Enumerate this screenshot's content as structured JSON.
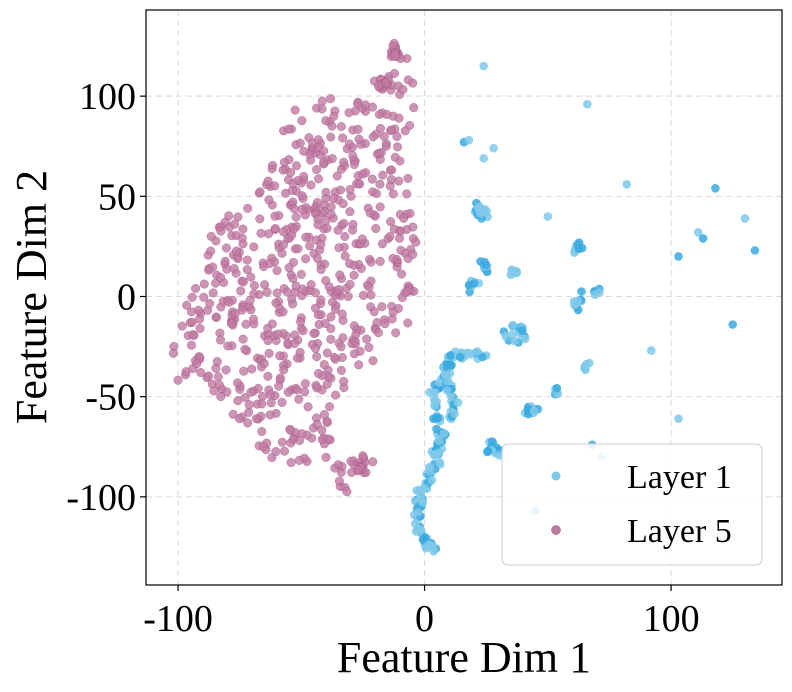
{
  "chart_data": {
    "type": "scatter",
    "xlabel": "Feature Dim 1",
    "ylabel": "Feature Dim 2",
    "xlim": [
      -113,
      145
    ],
    "ylim": [
      -144,
      143
    ],
    "xticks": [
      -100,
      0,
      100
    ],
    "yticks": [
      -100,
      -50,
      0,
      50,
      100
    ],
    "xtick_labels": [
      "-100",
      "0",
      "100"
    ],
    "ytick_labels": [
      "-100",
      "-50",
      "0",
      "50",
      "100"
    ],
    "grid": true,
    "legend_position": "lower-right",
    "series": [
      {
        "name": "Layer 1",
        "color": "#7fc9ea",
        "dark_color": "#3aa9e0",
        "clusters": [
          {
            "type": "path",
            "pts": [
              [
                12,
                -25
              ],
              [
                8,
                -40
              ],
              [
                3,
                -50
              ],
              [
                5,
                -60
              ],
              [
                7,
                -70
              ],
              [
                5,
                -80
              ],
              [
                2,
                -90
              ],
              [
                -2,
                -100
              ],
              [
                -3,
                -110
              ],
              [
                -1,
                -120
              ],
              [
                5,
                -128
              ]
            ],
            "n": 140,
            "spread": 3
          },
          {
            "type": "path",
            "pts": [
              [
                10,
                -30
              ],
              [
                20,
                -28
              ],
              [
                25,
                -30
              ]
            ],
            "n": 20,
            "spread": 3
          },
          {
            "type": "path",
            "pts": [
              [
                10,
                -45
              ],
              [
                12,
                -60
              ]
            ],
            "n": 20,
            "spread": 3
          },
          {
            "type": "blob",
            "c": [
              23,
              43
            ],
            "r": [
              5,
              5
            ],
            "n": 18
          },
          {
            "type": "blob",
            "c": [
              25,
              15
            ],
            "r": [
              4,
              5
            ],
            "n": 12
          },
          {
            "type": "blob",
            "c": [
              20,
              5
            ],
            "r": [
              4,
              4
            ],
            "n": 8
          },
          {
            "type": "blob",
            "c": [
              36,
              12
            ],
            "r": [
              3,
              3
            ],
            "n": 8
          },
          {
            "type": "blob",
            "c": [
              37,
              -18
            ],
            "r": [
              7,
              7
            ],
            "n": 18
          },
          {
            "type": "blob",
            "c": [
              43,
              -57
            ],
            "r": [
              5,
              4
            ],
            "n": 15
          },
          {
            "type": "blob",
            "c": [
              28,
              -76
            ],
            "r": [
              5,
              7
            ],
            "n": 14
          },
          {
            "type": "blob",
            "c": [
              62,
              -3
            ],
            "r": [
              4,
              6
            ],
            "n": 10
          },
          {
            "type": "blob",
            "c": [
              62,
              25
            ],
            "r": [
              4,
              4
            ],
            "n": 8
          },
          {
            "type": "blob",
            "c": [
              70,
              3
            ],
            "r": [
              3,
              3
            ],
            "n": 5
          },
          {
            "type": "blob",
            "c": [
              66,
              -35
            ],
            "r": [
              3,
              5
            ],
            "n": 5
          },
          {
            "type": "blob",
            "c": [
              53,
              -47
            ],
            "r": [
              3,
              3
            ],
            "n": 4
          },
          {
            "type": "points",
            "pts": [
              [
                24,
                115
              ],
              [
                66,
                96
              ],
              [
                16,
                77
              ],
              [
                28,
                74
              ],
              [
                82,
                56
              ],
              [
                118,
                54
              ],
              [
                24,
                69
              ],
              [
                50,
                40
              ],
              [
                130,
                39
              ],
              [
                111,
                32
              ],
              [
                113,
                29
              ],
              [
                134,
                23
              ],
              [
                103,
                20
              ],
              [
                92,
                -27
              ],
              [
                125,
                -14
              ],
              [
                103,
                -61
              ],
              [
                68,
                -74
              ],
              [
                72,
                -80
              ],
              [
                45,
                -107
              ],
              [
                18,
                78
              ]
            ]
          }
        ]
      },
      {
        "name": "Layer 5",
        "color": "#c07aa2",
        "edge": "#9a4478",
        "clusters": [
          {
            "type": "polygon",
            "pts": [
              [
                -8,
                125
              ],
              [
                -15,
                110
              ],
              [
                -20,
                97
              ],
              [
                -35,
                103
              ],
              [
                -57,
                92
              ],
              [
                -60,
                70
              ],
              [
                -70,
                52
              ],
              [
                -85,
                35
              ],
              [
                -93,
                10
              ],
              [
                -103,
                -22
              ],
              [
                -100,
                -45
              ],
              [
                -85,
                -52
              ],
              [
                -74,
                -67
              ],
              [
                -60,
                -83
              ],
              [
                -40,
                -90
              ],
              [
                -30,
                -99
              ],
              [
                -26,
                -90
              ],
              [
                -37,
                -80
              ],
              [
                -37,
                -60
              ],
              [
                -28,
                -43
              ],
              [
                -20,
                -31
              ],
              [
                -6,
                -13
              ],
              [
                -3,
                -2
              ],
              [
                -1,
                15
              ],
              [
                -3,
                35
              ],
              [
                -3,
                52
              ],
              [
                -10,
                70
              ],
              [
                -4,
                90
              ],
              [
                -3,
                110
              ],
              [
                -5,
                125
              ]
            ],
            "n": 640
          },
          {
            "type": "blob",
            "c": [
              -12,
              122
            ],
            "r": [
              3,
              5
            ],
            "n": 20
          },
          {
            "type": "blob",
            "c": [
              -17,
              107
            ],
            "r": [
              4,
              5
            ],
            "n": 15
          },
          {
            "type": "blob",
            "c": [
              -25,
              -84
            ],
            "r": [
              6,
              8
            ],
            "n": 20
          }
        ]
      }
    ]
  }
}
